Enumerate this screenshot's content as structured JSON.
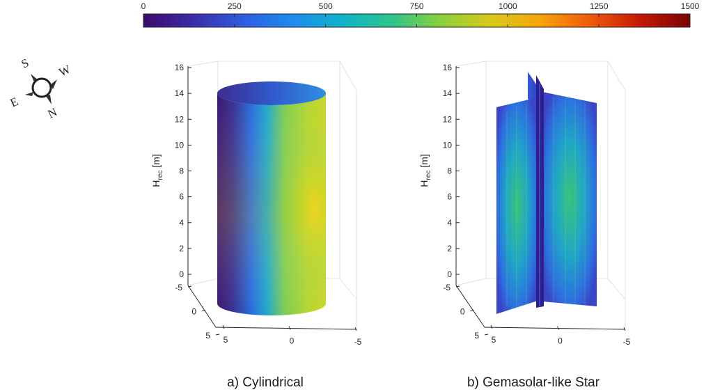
{
  "colorbar": {
    "ticks": [
      "0",
      "250",
      "500",
      "750",
      "1000",
      "1250",
      "1500"
    ],
    "range": [
      0,
      1500
    ],
    "colormap": [
      "#3e0a6b",
      "#3a2da8",
      "#2f5de0",
      "#1e8cf0",
      "#0fb3c9",
      "#2fc48a",
      "#8ccf3c",
      "#d8c91a",
      "#f7a30c",
      "#ef5a0d",
      "#c41906",
      "#7a0403"
    ]
  },
  "compass": {
    "s": "S",
    "w": "W",
    "e": "E",
    "n": "N"
  },
  "chart_data": [
    {
      "type": "heatmap",
      "caption": "a) Cylindrical",
      "zlabel_main": "H",
      "zlabel_sub": "rec",
      "zlabel_unit": " [m]",
      "z_ticks": [
        "0",
        "2",
        "4",
        "6",
        "8",
        "10",
        "12",
        "14",
        "16"
      ],
      "zlim": [
        0,
        16
      ],
      "y_ticks": [
        "-5",
        "0",
        "5"
      ],
      "x_ticks": [
        "5",
        "0",
        "-5"
      ],
      "surface": "cylinder",
      "color_range": [
        0,
        1000
      ],
      "colors": {
        "dark": "#3b1670",
        "mid": "#2b78e6",
        "teal": "#27b6a4",
        "green": "#9fd23c",
        "yellow": "#e6d21e"
      }
    },
    {
      "type": "heatmap",
      "caption": "b) Gemasolar-like Star",
      "zlabel_main": "H",
      "zlabel_sub": "rec",
      "zlabel_unit": " [m]",
      "z_ticks": [
        "0",
        "2",
        "4",
        "6",
        "8",
        "10",
        "12",
        "14",
        "16"
      ],
      "zlim": [
        0,
        16
      ],
      "y_ticks": [
        "-5",
        "0",
        "5"
      ],
      "x_ticks": [
        "5",
        "0",
        "-5"
      ],
      "surface": "star",
      "color_range": [
        0,
        700
      ],
      "colors": {
        "edge": "#2f58d6",
        "mid": "#1a9edc",
        "core": "#2fc07a",
        "fin": "#34249a"
      }
    }
  ]
}
